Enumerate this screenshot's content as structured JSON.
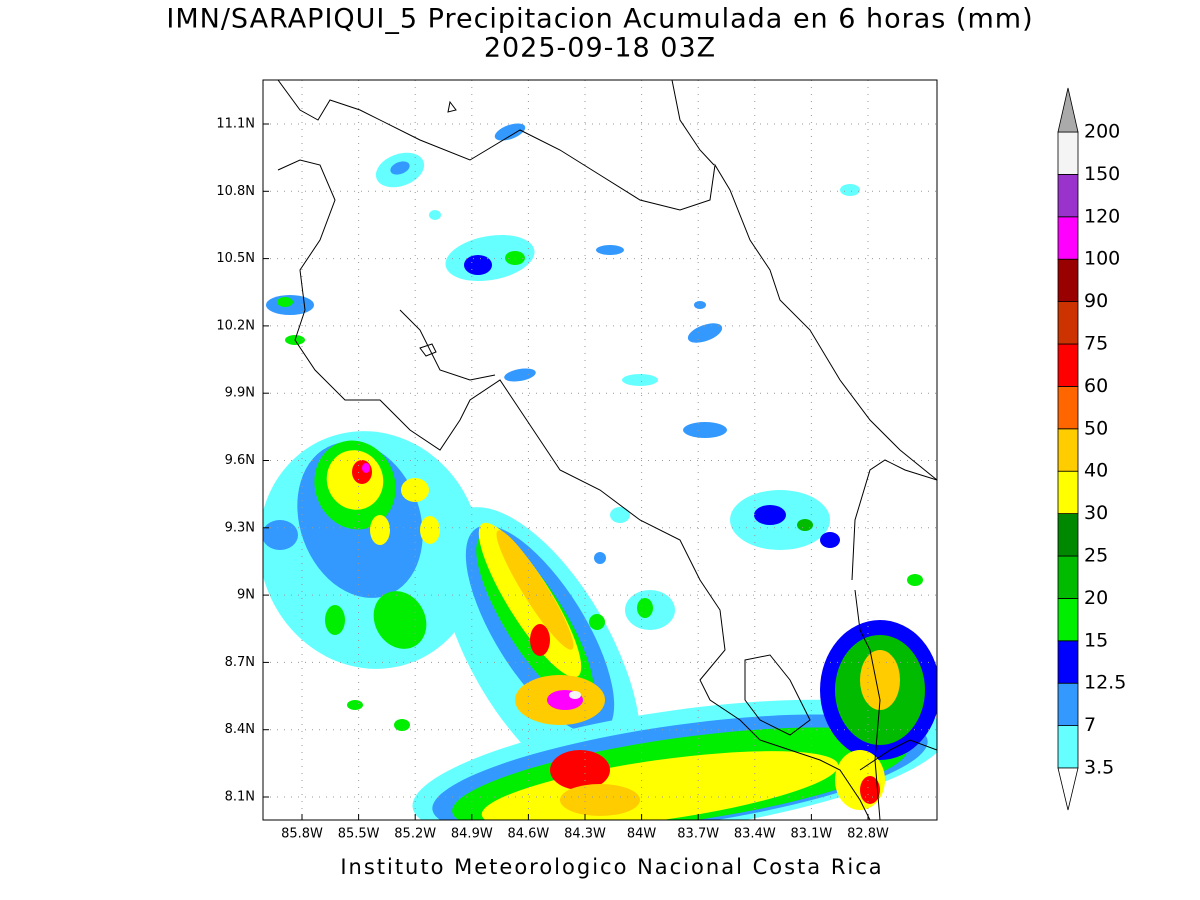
{
  "title": "IMN/SARAPIQUI_5 Precipitacion Acumulada en 6 horas (mm)",
  "subtitle": "2025-09-18 03Z",
  "map": {
    "x_labels": [
      "85.8W",
      "85.5W",
      "85.2W",
      "84.9W",
      "84.6W",
      "84.3W",
      "84W",
      "83.7W",
      "83.4W",
      "83.1W",
      "82.8W"
    ],
    "y_labels": [
      "11.1N",
      "10.8N",
      "10.5N",
      "10.2N",
      "9.9N",
      "9.6N",
      "9.3N",
      "9N",
      "8.7N",
      "8.4N",
      "8.1N"
    ]
  },
  "colorbar": {
    "levels": [
      3.5,
      7,
      12.5,
      15,
      20,
      25,
      30,
      40,
      50,
      60,
      75,
      90,
      100,
      120,
      150,
      200
    ],
    "colors": [
      "#66ffff",
      "#3399ff",
      "#0000ff",
      "#00ee00",
      "#00bb00",
      "#008800",
      "#ffff00",
      "#ffcc00",
      "#ff6600",
      "#ff0000",
      "#cc3300",
      "#990000",
      "#ff00ff",
      "#9933cc",
      "#f4f4f4"
    ],
    "over_color": "#aaaaaa",
    "under_color": "#ffffff"
  },
  "footer": "Instituto Meteorologico Nacional Costa Rica"
}
